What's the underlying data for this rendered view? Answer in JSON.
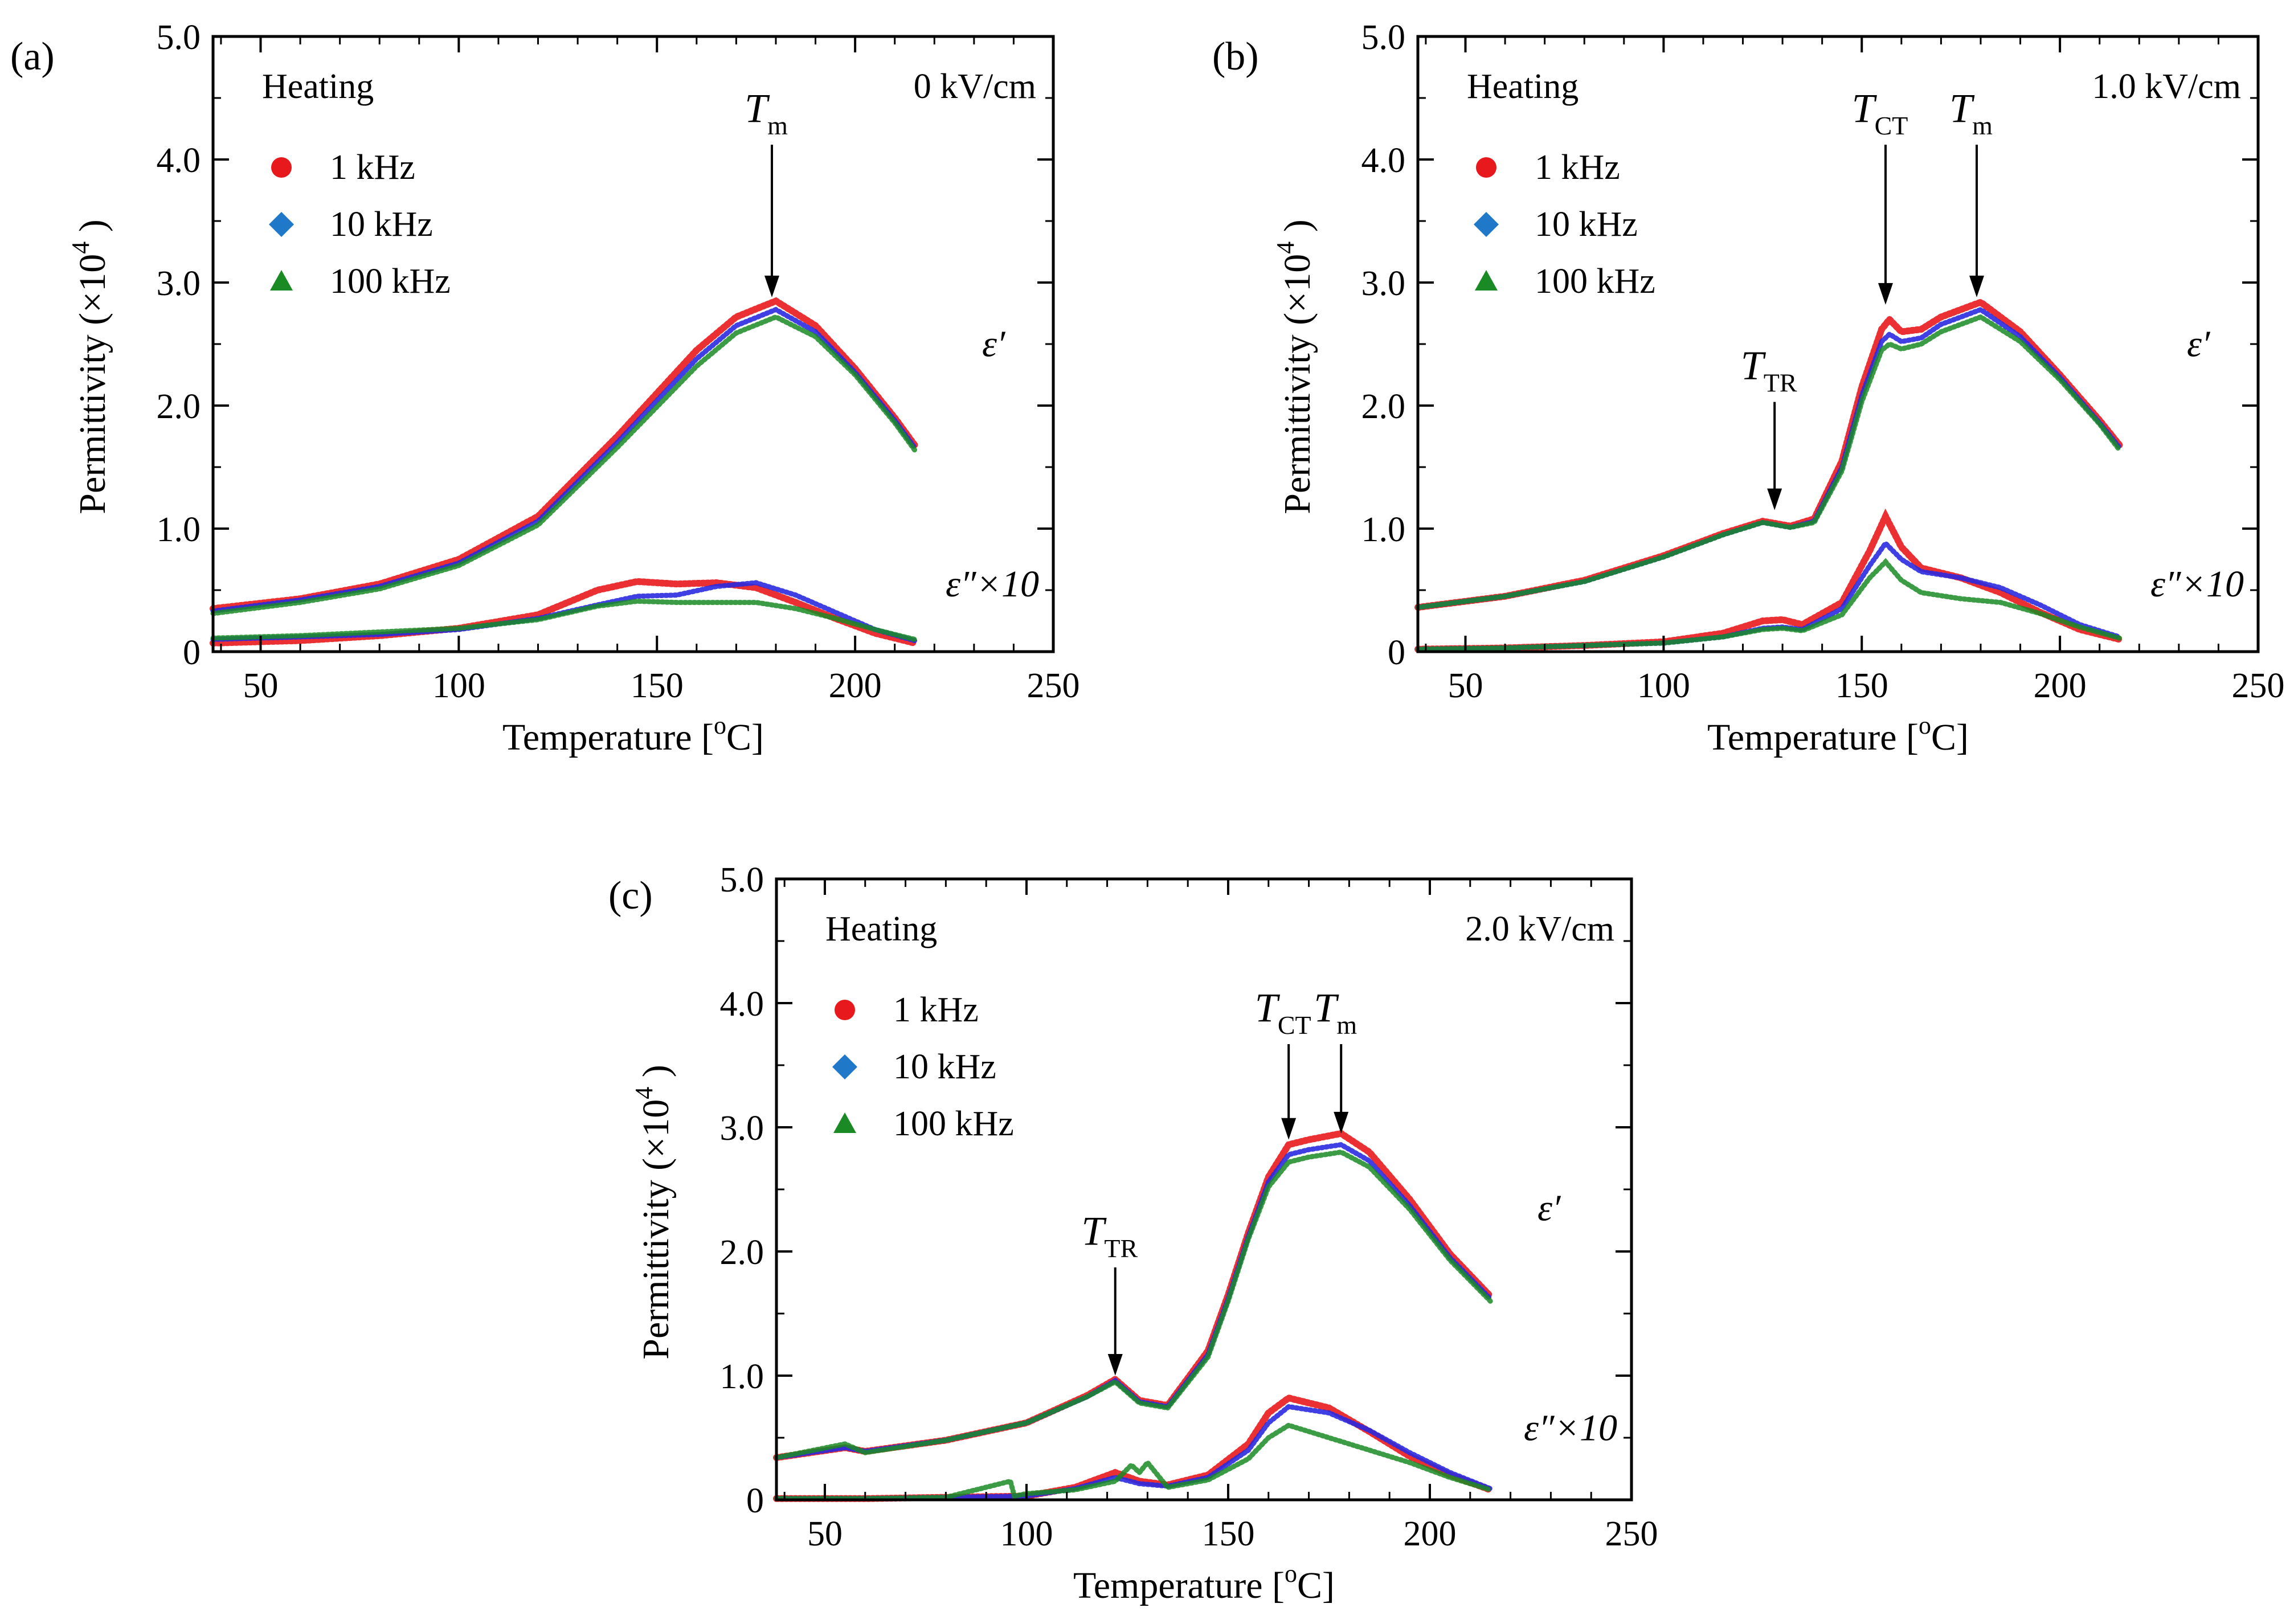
{
  "figure": {
    "x_label_text": "Temperature [",
    "x_label_sup": "o",
    "x_label_end": "C]",
    "y_label_text": "Permittivity (×10",
    "y_label_sup": "4",
    "y_label_end": " )",
    "legend_entries": [
      {
        "label": "1 kHz",
        "color": "#e8191c",
        "marker": "circle"
      },
      {
        "label": "10 kHz",
        "color": "#1f78c8",
        "marker": "diamond"
      },
      {
        "label": "100 kHz",
        "color": "#1a8a24",
        "marker": "triangle"
      }
    ],
    "colors": {
      "1 kHz": "#e8191c",
      "10 kHz": "#1f78c8",
      "100 kHz": "#1a8a24",
      "blue_line": "#2a2ae0"
    },
    "x_ticks": [
      50,
      100,
      150,
      200,
      250
    ],
    "y_ticks": [
      "0",
      "1.0",
      "2.0",
      "3.0",
      "4.0",
      "5.0"
    ],
    "eps_real_label": "ε′",
    "eps_imag_label": "ε″×10"
  },
  "chart_data": [
    {
      "type": "scatter",
      "panel_label": "(a)",
      "title": "0 kV/cm",
      "mode_label": "Heating",
      "xlabel": "Temperature [oC]",
      "ylabel": "Permittivity (×10^4 )",
      "xlim": [
        38,
        250
      ],
      "ylim": [
        0,
        5.0
      ],
      "grid": false,
      "legend_position": "top-left",
      "annotations": [
        {
          "sym": "T",
          "sub": "m",
          "x": 179,
          "y_arrow_tip": 2.88
        }
      ],
      "series": [
        {
          "name": "1 kHz ε′",
          "x": [
            38,
            60,
            80,
            100,
            120,
            140,
            160,
            170,
            180,
            190,
            200,
            210,
            215
          ],
          "values": [
            0.35,
            0.43,
            0.55,
            0.75,
            1.1,
            1.75,
            2.45,
            2.72,
            2.85,
            2.65,
            2.3,
            1.9,
            1.68
          ]
        },
        {
          "name": "10 kHz ε′",
          "x": [
            38,
            60,
            80,
            100,
            120,
            140,
            160,
            170,
            180,
            190,
            200,
            210,
            215
          ],
          "values": [
            0.33,
            0.42,
            0.53,
            0.72,
            1.06,
            1.7,
            2.38,
            2.65,
            2.78,
            2.6,
            2.27,
            1.88,
            1.66
          ]
        },
        {
          "name": "100 kHz ε′",
          "x": [
            38,
            60,
            80,
            100,
            120,
            140,
            160,
            170,
            180,
            190,
            200,
            210,
            215
          ],
          "values": [
            0.31,
            0.4,
            0.51,
            0.7,
            1.03,
            1.66,
            2.32,
            2.59,
            2.72,
            2.56,
            2.25,
            1.86,
            1.64
          ]
        },
        {
          "name": "1 kHz ε″×10",
          "x": [
            38,
            60,
            80,
            100,
            120,
            135,
            145,
            155,
            165,
            175,
            185,
            195,
            205,
            215
          ],
          "values": [
            0.07,
            0.09,
            0.13,
            0.19,
            0.3,
            0.5,
            0.57,
            0.55,
            0.56,
            0.52,
            0.4,
            0.27,
            0.15,
            0.07
          ]
        },
        {
          "name": "10 kHz ε″×10",
          "x": [
            38,
            60,
            80,
            100,
            120,
            135,
            145,
            155,
            165,
            175,
            185,
            195,
            205,
            215
          ],
          "values": [
            0.1,
            0.12,
            0.14,
            0.18,
            0.27,
            0.38,
            0.45,
            0.46,
            0.53,
            0.56,
            0.46,
            0.32,
            0.18,
            0.09
          ]
        },
        {
          "name": "100 kHz ε″×10",
          "x": [
            38,
            60,
            80,
            100,
            120,
            135,
            145,
            155,
            165,
            175,
            185,
            195,
            205,
            215
          ],
          "values": [
            0.11,
            0.13,
            0.16,
            0.19,
            0.26,
            0.37,
            0.41,
            0.4,
            0.4,
            0.4,
            0.35,
            0.27,
            0.18,
            0.1
          ]
        }
      ]
    },
    {
      "type": "scatter",
      "panel_label": "(b)",
      "title": "1.0 kV/cm",
      "mode_label": "Heating",
      "xlabel": "Temperature [oC]",
      "ylabel": "Permittivity (×10^4 )",
      "xlim": [
        38,
        250
      ],
      "ylim": [
        0,
        5.0
      ],
      "grid": false,
      "legend_position": "top-left",
      "annotations": [
        {
          "sym": "T",
          "sub": "TR",
          "x": 128,
          "y_arrow_tip": 1.15
        },
        {
          "sym": "T",
          "sub": "CT",
          "x": 156,
          "y_arrow_tip": 2.82
        },
        {
          "sym": "T",
          "sub": "m",
          "x": 179,
          "y_arrow_tip": 2.88
        }
      ],
      "series": [
        {
          "name": "1 kHz ε′",
          "x": [
            38,
            60,
            80,
            100,
            115,
            125,
            132,
            138,
            145,
            150,
            155,
            157,
            160,
            165,
            170,
            180,
            190,
            200,
            210,
            215
          ],
          "values": [
            0.36,
            0.45,
            0.58,
            0.78,
            0.96,
            1.06,
            1.02,
            1.08,
            1.55,
            2.15,
            2.62,
            2.7,
            2.6,
            2.62,
            2.72,
            2.84,
            2.6,
            2.25,
            1.88,
            1.68
          ]
        },
        {
          "name": "10 kHz ε′",
          "x": [
            38,
            60,
            80,
            100,
            115,
            125,
            132,
            138,
            145,
            150,
            155,
            157,
            160,
            165,
            170,
            180,
            190,
            200,
            210,
            215
          ],
          "values": [
            0.36,
            0.45,
            0.57,
            0.77,
            0.95,
            1.05,
            1.01,
            1.06,
            1.5,
            2.08,
            2.52,
            2.58,
            2.52,
            2.55,
            2.66,
            2.78,
            2.56,
            2.23,
            1.86,
            1.66
          ]
        },
        {
          "name": "100 kHz ε′",
          "x": [
            38,
            60,
            80,
            100,
            115,
            125,
            132,
            138,
            145,
            150,
            155,
            157,
            160,
            165,
            170,
            180,
            190,
            200,
            210,
            215
          ],
          "values": [
            0.36,
            0.45,
            0.57,
            0.77,
            0.95,
            1.05,
            1.01,
            1.05,
            1.47,
            2.03,
            2.45,
            2.5,
            2.46,
            2.5,
            2.6,
            2.72,
            2.52,
            2.21,
            1.85,
            1.64
          ]
        },
        {
          "name": "1 kHz ε″×10",
          "x": [
            38,
            60,
            80,
            100,
            115,
            125,
            130,
            135,
            145,
            152,
            156,
            160,
            165,
            175,
            185,
            195,
            205,
            215
          ],
          "values": [
            0.02,
            0.03,
            0.05,
            0.08,
            0.15,
            0.25,
            0.26,
            0.22,
            0.4,
            0.82,
            1.1,
            0.85,
            0.68,
            0.6,
            0.48,
            0.32,
            0.18,
            0.1
          ]
        },
        {
          "name": "10 kHz ε″×10",
          "x": [
            38,
            60,
            80,
            100,
            115,
            125,
            130,
            135,
            145,
            152,
            156,
            160,
            165,
            175,
            185,
            195,
            205,
            215
          ],
          "values": [
            0.02,
            0.03,
            0.05,
            0.07,
            0.12,
            0.19,
            0.2,
            0.18,
            0.35,
            0.7,
            0.88,
            0.75,
            0.65,
            0.6,
            0.52,
            0.38,
            0.22,
            0.12
          ]
        },
        {
          "name": "100 kHz ε″×10",
          "x": [
            38,
            60,
            80,
            100,
            115,
            125,
            130,
            135,
            145,
            152,
            156,
            160,
            165,
            175,
            185,
            195,
            205,
            215
          ],
          "values": [
            0.02,
            0.03,
            0.05,
            0.07,
            0.12,
            0.18,
            0.19,
            0.17,
            0.3,
            0.6,
            0.73,
            0.58,
            0.48,
            0.43,
            0.4,
            0.31,
            0.2,
            0.11
          ]
        }
      ]
    },
    {
      "type": "scatter",
      "panel_label": "(c)",
      "title": "2.0 kV/cm",
      "mode_label": "Heating",
      "xlabel": "Temperature [oC]",
      "ylabel": "Permittivity (×10^4 )",
      "xlim": [
        38,
        250
      ],
      "ylim": [
        0,
        5.0
      ],
      "grid": false,
      "legend_position": "top-left",
      "annotations": [
        {
          "sym": "T",
          "sub": "TR",
          "x": 122,
          "y_arrow_tip": 1.0
        },
        {
          "sym": "T",
          "sub": "CT",
          "x": 165,
          "y_arrow_tip": 2.9
        },
        {
          "sym": "T",
          "sub": "m",
          "x": 178,
          "y_arrow_tip": 2.95
        }
      ],
      "series": [
        {
          "name": "1 kHz ε′",
          "x": [
            38,
            55,
            60,
            80,
            100,
            115,
            122,
            128,
            135,
            145,
            150,
            155,
            160,
            165,
            170,
            178,
            185,
            195,
            205,
            215
          ],
          "values": [
            0.34,
            0.42,
            0.39,
            0.48,
            0.62,
            0.84,
            0.97,
            0.8,
            0.76,
            1.2,
            1.65,
            2.15,
            2.6,
            2.86,
            2.9,
            2.95,
            2.8,
            2.42,
            1.98,
            1.64
          ]
        },
        {
          "name": "10 kHz ε′",
          "x": [
            38,
            55,
            60,
            80,
            100,
            115,
            122,
            128,
            135,
            145,
            150,
            155,
            160,
            165,
            170,
            178,
            185,
            195,
            205,
            215
          ],
          "values": [
            0.34,
            0.42,
            0.39,
            0.48,
            0.62,
            0.83,
            0.96,
            0.79,
            0.75,
            1.17,
            1.62,
            2.12,
            2.56,
            2.78,
            2.82,
            2.86,
            2.73,
            2.37,
            1.95,
            1.62
          ]
        },
        {
          "name": "100 kHz ε′",
          "x": [
            38,
            55,
            60,
            80,
            100,
            115,
            122,
            128,
            135,
            145,
            150,
            155,
            160,
            165,
            170,
            178,
            185,
            195,
            205,
            215
          ],
          "values": [
            0.34,
            0.45,
            0.38,
            0.48,
            0.62,
            0.83,
            0.95,
            0.78,
            0.74,
            1.15,
            1.6,
            2.1,
            2.52,
            2.72,
            2.76,
            2.8,
            2.68,
            2.34,
            1.93,
            1.6
          ]
        },
        {
          "name": "1 kHz ε″×10",
          "x": [
            38,
            60,
            80,
            100,
            112,
            122,
            128,
            135,
            145,
            155,
            160,
            165,
            175,
            185,
            195,
            205,
            215
          ],
          "values": [
            0.01,
            0.01,
            0.02,
            0.03,
            0.1,
            0.22,
            0.15,
            0.12,
            0.2,
            0.45,
            0.7,
            0.82,
            0.74,
            0.55,
            0.35,
            0.2,
            0.08
          ]
        },
        {
          "name": "10 kHz ε″×10",
          "x": [
            38,
            60,
            80,
            100,
            112,
            122,
            128,
            135,
            145,
            155,
            160,
            165,
            175,
            185,
            195,
            205,
            215
          ],
          "values": [
            0.01,
            0.01,
            0.02,
            0.03,
            0.09,
            0.18,
            0.13,
            0.11,
            0.18,
            0.4,
            0.62,
            0.75,
            0.7,
            0.56,
            0.38,
            0.22,
            0.09
          ]
        },
        {
          "name": "100 kHz ε″×10",
          "x": [
            38,
            60,
            80,
            96,
            97,
            100,
            112,
            122,
            126,
            128,
            130,
            135,
            145,
            155,
            160,
            165,
            175,
            185,
            195,
            205,
            215
          ],
          "values": [
            0.01,
            0.01,
            0.02,
            0.15,
            0.03,
            0.05,
            0.08,
            0.15,
            0.28,
            0.22,
            0.3,
            0.1,
            0.16,
            0.33,
            0.5,
            0.6,
            0.5,
            0.4,
            0.3,
            0.18,
            0.08
          ]
        }
      ]
    }
  ]
}
